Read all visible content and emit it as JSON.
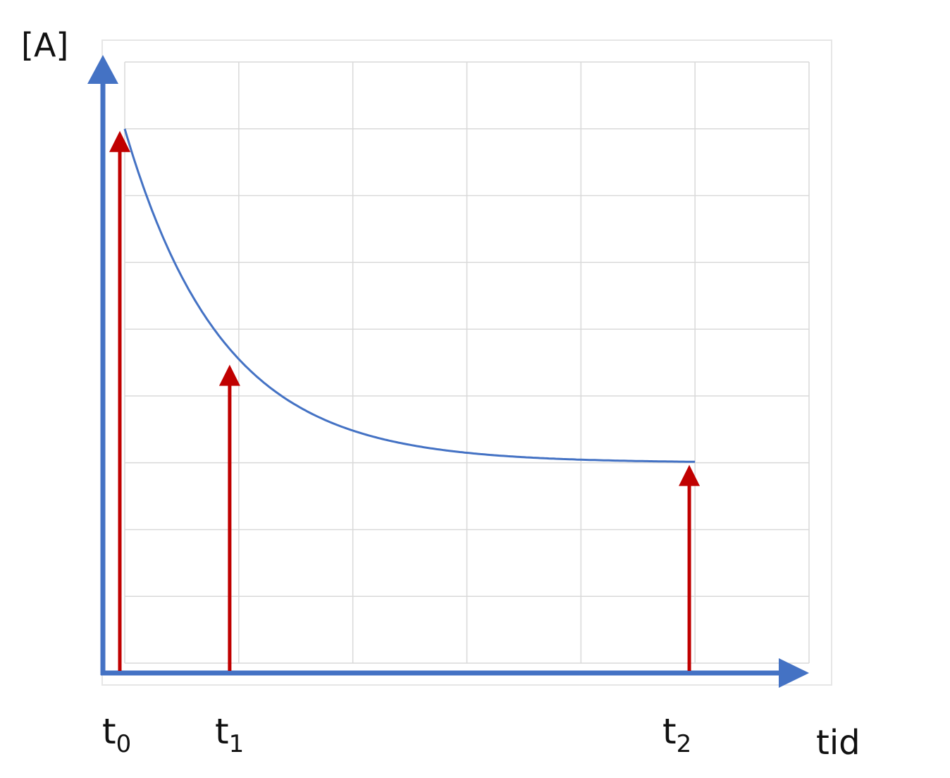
{
  "chart_data": {
    "type": "line",
    "ylabel": "[A]",
    "xlabel": "tid",
    "xlim": [
      0,
      6
    ],
    "ylim": [
      0,
      9
    ],
    "grid": true,
    "series": [
      {
        "x": [
          0,
          0.5,
          1,
          1.5,
          2,
          2.5,
          3,
          3.5,
          4,
          4.5,
          5
        ],
        "values": [
          8.0,
          5.8,
          4.55,
          3.87,
          3.48,
          3.27,
          3.15,
          3.08,
          3.05,
          3.03,
          3.0
        ],
        "color": "#4472C4"
      }
    ],
    "markers": [
      {
        "label": "t",
        "sub": "0",
        "x": 0,
        "value": 8.0,
        "color": "#C00000"
      },
      {
        "label": "t",
        "sub": "1",
        "x": 0.92,
        "value": 4.5,
        "color": "#C00000"
      },
      {
        "label": "t",
        "sub": "2",
        "x": 4.95,
        "value": 3.0,
        "color": "#C00000"
      }
    ],
    "axis_color": "#4472C4",
    "grid_color": "#D9D9D9"
  }
}
